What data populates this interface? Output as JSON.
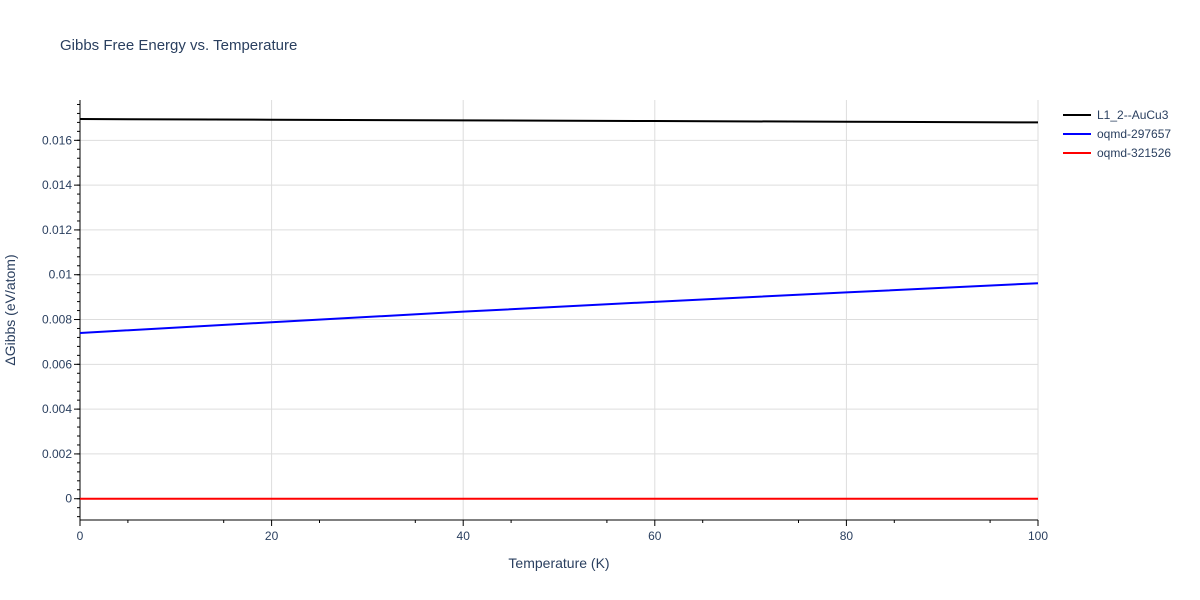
{
  "chart_data": {
    "type": "line",
    "title": "Gibbs Free Energy vs. Temperature",
    "xlabel": "Temperature (K)",
    "ylabel": "ΔGibbs (eV/atom)",
    "xlim": [
      0,
      100
    ],
    "ylim": [
      -0.00095,
      0.0178
    ],
    "x_ticks": [
      0,
      20,
      40,
      60,
      80,
      100
    ],
    "x_tick_labels": [
      "0",
      "20",
      "40",
      "60",
      "80",
      "100"
    ],
    "y_ticks": [
      0,
      0.002,
      0.004,
      0.006,
      0.008,
      0.01,
      0.012,
      0.014,
      0.016
    ],
    "y_tick_labels": [
      "0",
      "0.002",
      "0.004",
      "0.006",
      "0.008",
      "0.01",
      "0.012",
      "0.014",
      "0.016"
    ],
    "grid": true,
    "legend_position": "top-right",
    "series": [
      {
        "name": "L1_2--AuCu3",
        "color": "#000000",
        "x": [
          0,
          20,
          40,
          60,
          80,
          100
        ],
        "y": [
          0.01695,
          0.01692,
          0.01689,
          0.01686,
          0.01683,
          0.0168
        ]
      },
      {
        "name": "oqmd-297657",
        "color": "#0000ff",
        "x": [
          0,
          20,
          40,
          60,
          80,
          100
        ],
        "y": [
          0.0074,
          0.00788,
          0.00835,
          0.00879,
          0.00921,
          0.00962
        ]
      },
      {
        "name": "oqmd-321526",
        "color": "#ff0000",
        "x": [
          0,
          20,
          40,
          60,
          80,
          100
        ],
        "y": [
          0,
          0,
          0,
          0,
          0,
          0
        ]
      }
    ]
  }
}
